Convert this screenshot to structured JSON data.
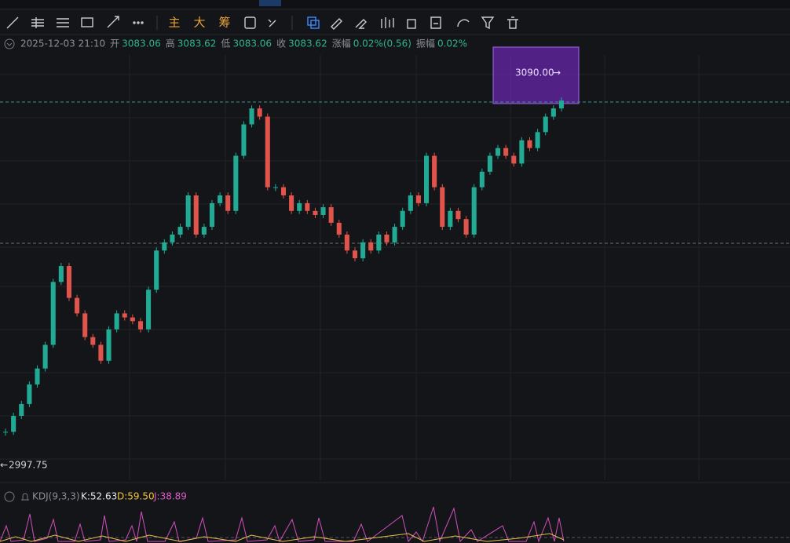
{
  "toolbar": {
    "buttons": [
      "主",
      "大",
      "筹"
    ]
  },
  "info": {
    "datetime": "2025-12-03 21:10",
    "fields": [
      {
        "label": "开",
        "value": "3083.06"
      },
      {
        "label": "高",
        "value": "3083.62"
      },
      {
        "label": "低",
        "value": "3083.06"
      },
      {
        "label": "收",
        "value": "3083.62"
      },
      {
        "label": "涨幅",
        "value": "0.02%(0.56)"
      },
      {
        "label": "振幅",
        "value": "0.02%"
      }
    ]
  },
  "chart_data": {
    "type": "candlestick",
    "closes": [
      3002.5,
      3006.4,
      3009.3,
      3014.1,
      3018,
      3023.8,
      3039.2,
      3043.1,
      3035.3,
      3031.5,
      3025.7,
      3023.8,
      3019.9,
      3027.6,
      3031.5,
      3030.5,
      3029.6,
      3027.6,
      3037.3,
      3046.9,
      3048.9,
      3050.8,
      3052.7,
      3060.4,
      3050.8,
      3052.7,
      3058.5,
      3060.4,
      3056.6,
      3070.1,
      3077.8,
      3081.7,
      3079.7,
      3062.4,
      3062.4,
      3060.4,
      3056.6,
      3058.5,
      3056.6,
      3055.6,
      3057.5,
      3053.7,
      3050.8,
      3046.9,
      3045,
      3048.9,
      3046.9,
      3050.8,
      3048.9,
      3052.7,
      3056.6,
      3060.4,
      3058.5,
      3070.1,
      3062.4,
      3052.7,
      3056.6,
      3054.6,
      3050.8,
      3062.4,
      3066.2,
      3070.1,
      3072,
      3070.1,
      3068.2,
      3073.9,
      3072,
      3075.9,
      3079.7,
      3081.7,
      3083.62
    ],
    "high_marker": {
      "value": 3090,
      "label": "3090.00"
    },
    "low_marker": 2997.75,
    "up_color": "#22ab94",
    "down_color": "#e0544b"
  },
  "indicator": {
    "name": "KDJ(9,3,3)",
    "k": "K:52.63",
    "d": "D:59.50",
    "j": "J:38.89"
  }
}
